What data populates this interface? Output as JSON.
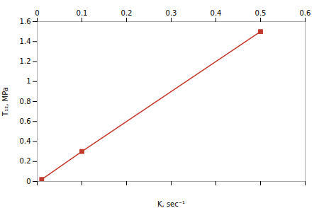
{
  "chart_data": {
    "type": "line",
    "x": [
      0.01,
      0.1,
      0.5
    ],
    "values": [
      0.02,
      0.3,
      1.5
    ],
    "color": "#c0392b",
    "marker": "square",
    "xlabel": "K, sec⁻¹",
    "ylabel": "T₁₂, MPa",
    "xlim": [
      0,
      0.6
    ],
    "ylim": [
      0,
      1.6
    ],
    "xticks": [
      0,
      0.1,
      0.2,
      0.3,
      0.4,
      0.5,
      0.6
    ],
    "yticks": [
      0,
      0.2,
      0.4,
      0.6,
      0.8,
      1,
      1.2,
      1.4,
      1.6
    ],
    "grid": false
  }
}
